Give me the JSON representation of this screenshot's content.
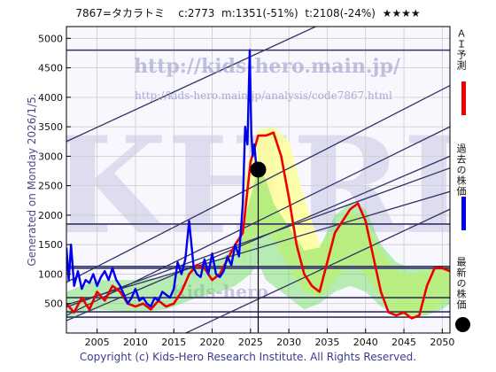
{
  "header": {
    "code_name": "7867=タカラトミ",
    "current": "c:2773",
    "min": "m:1351(-51%)",
    "target": "t:2108(-24%)",
    "rating": "★★★★"
  },
  "watermark": {
    "url1": "http://kids-hero.main.jp/",
    "url2": "http://kids-hero.main.jp/analysis/code7867.html",
    "logo": "KHRI",
    "logo_sub": "Kids-hero"
  },
  "side_text": "Generated on Monday 2026/1/5.",
  "footer": "Copyright (c) Kids-Hero Research Institute. All Rights Reserved.",
  "legend": {
    "ai_label": "ＡＩ予測",
    "past_label": "過去の株価",
    "latest_label": "最新の株価"
  },
  "colors": {
    "ai": "#ee0000",
    "past": "#0000ee",
    "latest": "#000000",
    "band_yellow": "#ffff99",
    "band_green": "#66dd55",
    "trend": "#333366"
  },
  "chart_data": {
    "type": "line",
    "xlim": [
      2001,
      2051
    ],
    "ylim": [
      0,
      5200
    ],
    "xticks": [
      2005,
      2010,
      2015,
      2020,
      2025,
      2030,
      2035,
      2040,
      2045,
      2050
    ],
    "yticks": [
      500,
      1000,
      1500,
      2000,
      2500,
      3000,
      3500,
      4000,
      4500,
      5000
    ],
    "horizontal_levels": [
      270,
      360,
      600,
      1100,
      1130,
      1850,
      4800
    ],
    "trend_lines": [
      {
        "from": [
          2001,
          3250
        ],
        "to": [
          2051,
          6250
        ]
      },
      {
        "from": [
          2001,
          860
        ],
        "to": [
          2051,
          4200
        ]
      },
      {
        "from": [
          2001,
          300
        ],
        "to": [
          2051,
          3500
        ]
      },
      {
        "from": [
          2001,
          210
        ],
        "to": [
          2051,
          3000
        ]
      },
      {
        "from": [
          2001,
          440
        ],
        "to": [
          2051,
          2800
        ]
      },
      {
        "from": [
          2001,
          480
        ],
        "to": [
          2051,
          2400
        ]
      },
      {
        "from": [
          2010,
          -400
        ],
        "to": [
          2051,
          2100
        ]
      }
    ],
    "latest_point": {
      "x": 2026.0,
      "y": 2773
    },
    "series": [
      {
        "name": "過去の株価",
        "x": [
          2001.0,
          2001.3,
          2001.6,
          2002.0,
          2002.5,
          2003.0,
          2003.5,
          2004.0,
          2004.5,
          2005.0,
          2005.5,
          2006.0,
          2006.5,
          2007.0,
          2007.5,
          2008.0,
          2008.5,
          2009.0,
          2009.5,
          2010.0,
          2010.5,
          2011.0,
          2011.5,
          2012.0,
          2012.5,
          2013.0,
          2013.5,
          2014.0,
          2014.5,
          2015.0,
          2015.5,
          2016.0,
          2016.5,
          2017.0,
          2017.3,
          2017.6,
          2018.0,
          2018.5,
          2019.0,
          2019.5,
          2020.0,
          2020.5,
          2021.0,
          2021.5,
          2022.0,
          2022.5,
          2023.0,
          2023.5,
          2024.0,
          2024.3,
          2024.6,
          2024.9,
          2025.1,
          2025.3,
          2025.5,
          2025.7,
          2025.9
        ],
        "values": [
          1450,
          900,
          1500,
          800,
          1050,
          750,
          900,
          850,
          1000,
          800,
          950,
          1050,
          900,
          1100,
          900,
          800,
          650,
          500,
          600,
          750,
          550,
          600,
          500,
          450,
          600,
          550,
          700,
          650,
          600,
          750,
          1200,
          1000,
          1250,
          1900,
          1500,
          1100,
          1000,
          950,
          1250,
          1000,
          1350,
          1000,
          950,
          1050,
          1300,
          1150,
          1500,
          1300,
          2200,
          3500,
          3200,
          4800,
          3400,
          3000,
          3200,
          2900,
          2773
        ]
      },
      {
        "name": "ＡＩ予測",
        "x": [
          2001.0,
          2002.0,
          2003.0,
          2004.0,
          2005.0,
          2006.0,
          2007.0,
          2008.0,
          2009.0,
          2010.0,
          2011.0,
          2012.0,
          2013.0,
          2014.0,
          2015.0,
          2016.0,
          2017.0,
          2018.0,
          2019.0,
          2020.0,
          2021.0,
          2022.0,
          2023.0,
          2024.0,
          2025.0,
          2026.0,
          2027.0,
          2028.0,
          2029.0,
          2030.0,
          2031.0,
          2032.0,
          2033.0,
          2034.0,
          2035.0,
          2036.0,
          2037.0,
          2038.0,
          2039.0,
          2040.0,
          2041.0,
          2042.0,
          2043.0,
          2044.0,
          2045.0,
          2046.0,
          2047.0,
          2048.0,
          2049.0,
          2050.0,
          2051.0
        ],
        "values": [
          500,
          350,
          600,
          400,
          700,
          550,
          800,
          700,
          500,
          450,
          500,
          400,
          550,
          450,
          500,
          700,
          1000,
          1150,
          1100,
          900,
          1000,
          1250,
          1500,
          1700,
          2900,
          3350,
          3350,
          3400,
          3000,
          2300,
          1500,
          1000,
          800,
          700,
          1200,
          1700,
          1900,
          2100,
          2200,
          1900,
          1300,
          700,
          350,
          300,
          350,
          250,
          300,
          800,
          1100,
          1100,
          1050
        ]
      }
    ],
    "band_yellow": {
      "x": [
        2024.0,
        2026.0,
        2028.0,
        2030.0,
        2032.0,
        2034.0,
        2036.0,
        2038.0,
        2040.0,
        2042.0,
        2044.0,
        2046.0,
        2048.0,
        2050.0,
        2051.0
      ],
      "upper": [
        2600,
        3450,
        3500,
        3250,
        2300,
        1500,
        1750,
        2050,
        1900,
        1400,
        1050,
        1000,
        1050,
        1150,
        1150
      ],
      "lower": [
        1200,
        1700,
        1600,
        1100,
        700,
        600,
        900,
        1200,
        1000,
        600,
        300,
        250,
        300,
        500,
        600
      ]
    },
    "band_green": {
      "x": [
        2001.0,
        2005.0,
        2010.0,
        2014.0,
        2018.0,
        2021.0,
        2023.0,
        2025.0,
        2026.0,
        2027.0,
        2028.0,
        2030.0,
        2032.0,
        2034.0,
        2036.0,
        2038.0,
        2040.0,
        2042.0,
        2044.0,
        2046.0,
        2048.0,
        2050.0,
        2051.0
      ],
      "upper": [
        700,
        900,
        900,
        950,
        1150,
        1250,
        1450,
        2300,
        2800,
        2600,
        2200,
        1800,
        1400,
        1450,
        2000,
        2200,
        2100,
        1500,
        1200,
        1100,
        1100,
        1150,
        1100
      ],
      "lower": [
        250,
        400,
        350,
        400,
        600,
        700,
        800,
        1000,
        1200,
        900,
        800,
        600,
        400,
        500,
        700,
        800,
        700,
        450,
        300,
        300,
        300,
        400,
        500
      ]
    }
  }
}
